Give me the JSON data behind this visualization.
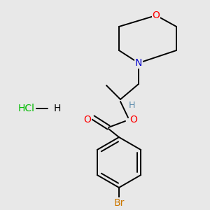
{
  "background_color": "#e8e8e8",
  "bond_color": "#000000",
  "atom_colors": {
    "O": "#ff0000",
    "N": "#0000cc",
    "Br": "#cc7700",
    "Cl": "#00bb00",
    "H": "#5588aa"
  },
  "figsize": [
    3.0,
    3.0
  ],
  "dpi": 100,
  "lw": 1.4
}
